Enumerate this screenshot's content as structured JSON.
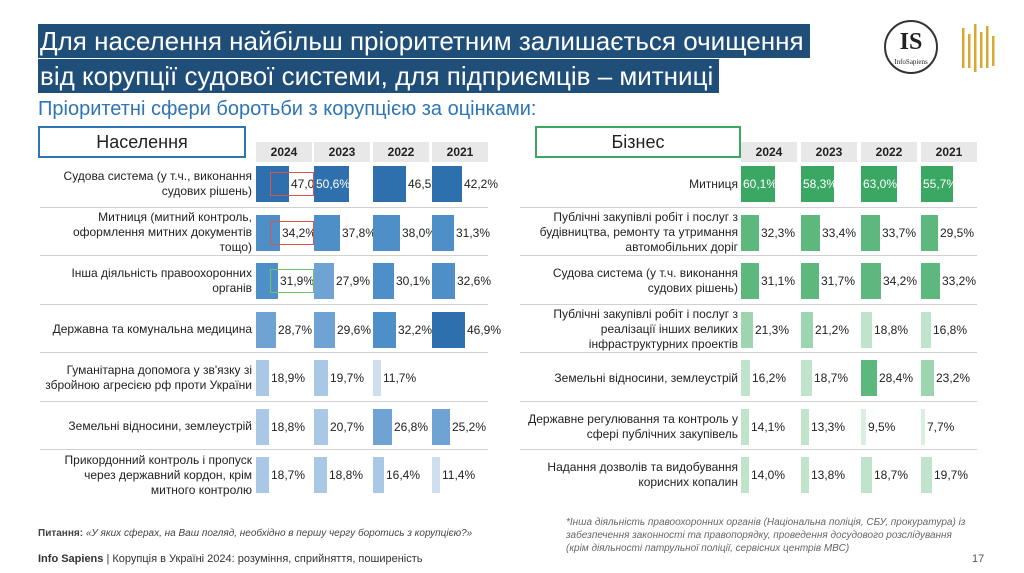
{
  "title": {
    "line1": "Для населення найбільш пріоритетним залишається очищення",
    "line2": "від корупції судової системи, для підприємців – митниці"
  },
  "subtitle": "Пріоритетні сфери боротьби з корупцією за оцінками:",
  "logo": {
    "text": "IS",
    "caption": "InfoSapiens"
  },
  "colors": {
    "title_bg": "#1f4e79",
    "population": "#2e75b6",
    "business": "#3aa862"
  },
  "chart_data": [
    {
      "type": "bar",
      "title": "Населення",
      "year_columns": [
        "2024",
        "2023",
        "2022",
        "2021"
      ],
      "categories": [
        "Судова система (у т.ч., виконання судових рішень)",
        "Митниця (митний контроль, оформлення митних документів тощо)",
        "Інша діяльність правоохоронних органів",
        "Державна та комунальна медицина",
        "Гуманітарна допомога у зв'язку зі збройною агресією рф проти України",
        "Земельні відносини, землеустрій",
        "Прикордонний контроль і пропуск через державний кордон, крім митного контролю"
      ],
      "series": [
        {
          "name": "2024",
          "values": [
            47.0,
            34.2,
            31.9,
            28.7,
            18.9,
            18.8,
            18.7
          ],
          "labels": [
            "47,0%",
            "34,2%",
            "31,9%",
            "28,7%",
            "18,9%",
            "18,8%",
            "18,7%"
          ]
        },
        {
          "name": "2023",
          "values": [
            50.6,
            37.8,
            27.9,
            29.6,
            19.7,
            20.7,
            18.8
          ],
          "labels": [
            "50,6%",
            "37,8%",
            "27,9%",
            "29,6%",
            "19,7%",
            "20,7%",
            "18,8%"
          ]
        },
        {
          "name": "2022",
          "values": [
            46.5,
            38.0,
            30.1,
            32.2,
            11.7,
            26.8,
            16.4
          ],
          "labels": [
            "46,5%",
            "38,0%",
            "30,1%",
            "32,2%",
            "11,7%",
            "26,8%",
            "16,4%"
          ]
        },
        {
          "name": "2021",
          "values": [
            42.2,
            31.3,
            32.6,
            46.9,
            null,
            25.2,
            11.4
          ],
          "labels": [
            "42,2%",
            "31,3%",
            "32,6%",
            "46,9%",
            "",
            "25,2%",
            "11,4%"
          ]
        }
      ],
      "highlights_2024": [
        "red",
        "red",
        "green",
        "",
        "",
        "",
        ""
      ],
      "ylim": [
        0,
        60
      ]
    },
    {
      "type": "bar",
      "title": "Бізнес",
      "year_columns": [
        "2024",
        "2023",
        "2022",
        "2021"
      ],
      "categories": [
        "Митниця",
        "Публічні закупівлі робіт і послуг з будівництва, ремонту та утримання автомобільних доріг",
        "Судова система (у т.ч. виконання судових рішень)",
        "Публічні закупівлі робіт і послуг з реалізації інших великих інфраструктурних проектів",
        "Земельні відносини, землеустрій",
        "Державне регулювання та контроль у сфері публічних закупівель",
        "Надання дозволів та видобування корисних копалин"
      ],
      "series": [
        {
          "name": "2024",
          "values": [
            60.1,
            32.3,
            31.1,
            21.3,
            16.2,
            14.1,
            14.0
          ],
          "labels": [
            "60,1%",
            "32,3%",
            "31,1%",
            "21,3%",
            "16,2%",
            "14,1%",
            "14,0%"
          ]
        },
        {
          "name": "2023",
          "values": [
            58.3,
            33.4,
            31.7,
            21.2,
            18.7,
            13.3,
            13.8
          ],
          "labels": [
            "58,3%",
            "33,4%",
            "31,7%",
            "21,2%",
            "18,7%",
            "13,3%",
            "13,8%"
          ]
        },
        {
          "name": "2022",
          "values": [
            63.0,
            33.7,
            34.2,
            18.8,
            28.4,
            9.5,
            18.7
          ],
          "labels": [
            "63,0%",
            "33,7%",
            "34,2%",
            "18,8%",
            "28,4%",
            "9,5%",
            "18,7%"
          ]
        },
        {
          "name": "2021",
          "values": [
            55.7,
            29.5,
            33.2,
            16.8,
            23.2,
            7.7,
            19.7
          ],
          "labels": [
            "55,7%",
            "29,5%",
            "33,2%",
            "16,8%",
            "23,2%",
            "7,7%",
            "19,7%"
          ]
        }
      ],
      "ylim": [
        0,
        70
      ]
    }
  ],
  "question": {
    "prefix": "Питання:",
    "text": "«У яких сферах, на Ваш погляд, необхідно в першу чергу боротись з корупцією?»"
  },
  "note": "*Інша діяльність правоохоронних органів (Національна поліція, СБУ, прокуратура) із забезпечення законності та правопорядку, проведення досудового розслідування (крім діяльності патрульної поліції, сервісних центрів МВС)",
  "footer": {
    "brand": "Info Sapiens",
    "text": " | Корупція в Україні 2024: розуміння, сприйняття, поширеність"
  },
  "page_number": "17"
}
